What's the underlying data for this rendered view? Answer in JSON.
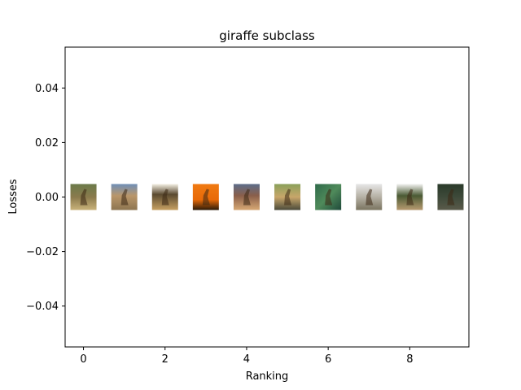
{
  "chart_data": {
    "type": "scatter",
    "title": "giraffe subclass",
    "xlabel": "Ranking",
    "ylabel": "Losses",
    "xlim": [
      -0.45,
      9.45
    ],
    "ylim": [
      -0.055,
      0.055
    ],
    "xticks": [
      0,
      2,
      4,
      6,
      8
    ],
    "yticks": [
      -0.04,
      -0.02,
      0.0,
      0.02,
      0.04
    ],
    "xtick_labels": [
      "0",
      "2",
      "4",
      "6",
      "8"
    ],
    "ytick_labels": [
      "−0.04",
      "−0.02",
      "0.00",
      "0.02",
      "0.04"
    ],
    "grid": false,
    "points": [
      {
        "x": 0,
        "y": 0.0,
        "thumbnail": "giraffes-in-woodland"
      },
      {
        "x": 1,
        "y": 0.0,
        "thumbnail": "giraffe-closeup-blue-sky"
      },
      {
        "x": 2,
        "y": 0.0,
        "thumbnail": "giraffes-savanna-trees"
      },
      {
        "x": 3,
        "y": 0.0,
        "thumbnail": "giraffe-silhouette-sunset"
      },
      {
        "x": 4,
        "y": 0.0,
        "thumbnail": "giraffe-herd-plains"
      },
      {
        "x": 5,
        "y": 0.0,
        "thumbnail": "giraffe-with-vehicle"
      },
      {
        "x": 6,
        "y": 0.0,
        "thumbnail": "giraffe-aerial-green"
      },
      {
        "x": 7,
        "y": 0.0,
        "thumbnail": "giraffe-hazy-sky"
      },
      {
        "x": 8,
        "y": 0.0,
        "thumbnail": "giraffes-near-tree"
      },
      {
        "x": 9,
        "y": 0.0,
        "thumbnail": "giraffe-dark-bush"
      }
    ]
  }
}
